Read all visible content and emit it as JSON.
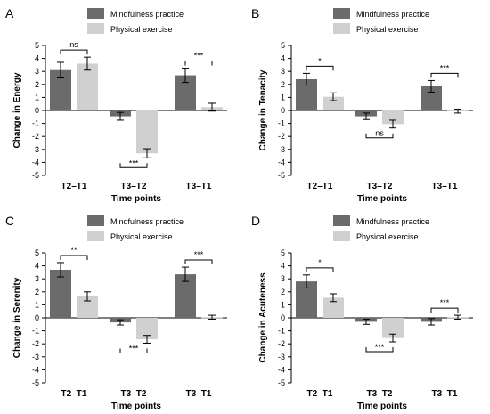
{
  "figure": {
    "colors": {
      "mindfulness": "#6b6b6b",
      "physical": "#d0d0d0",
      "axis": "#000000"
    }
  },
  "chart_data": [
    {
      "type": "bar",
      "panel_label": "A",
      "ylabel": "Change in Energy",
      "xlabel": "Time points",
      "categories": [
        "T2–T1",
        "T3–T2",
        "T3–T1"
      ],
      "ylim": [
        -5,
        5
      ],
      "yticks": [
        -5,
        -4,
        -3,
        -2,
        -1,
        0,
        1,
        2,
        3,
        4,
        5
      ],
      "legend_position": "top",
      "series": [
        {
          "name": "Mindfulness practice",
          "values": [
            3.1,
            -0.45,
            2.7
          ],
          "errors": [
            0.6,
            0.3,
            0.55
          ]
        },
        {
          "name": "Physical exercise",
          "values": [
            3.6,
            -3.3,
            0.25
          ],
          "errors": [
            0.5,
            0.35,
            0.3
          ]
        }
      ],
      "annotations": [
        {
          "category": 0,
          "text": "ns",
          "position": "above"
        },
        {
          "category": 1,
          "text": "***",
          "position": "below"
        },
        {
          "category": 2,
          "text": "***",
          "position": "above"
        }
      ]
    },
    {
      "type": "bar",
      "panel_label": "B",
      "ylabel": "Change in Tenacity",
      "xlabel": "Time points",
      "categories": [
        "T2–T1",
        "T3–T2",
        "T3–T1"
      ],
      "ylim": [
        -5,
        5
      ],
      "yticks": [
        -5,
        -4,
        -3,
        -2,
        -1,
        0,
        1,
        2,
        3,
        4,
        5
      ],
      "legend_position": "top",
      "series": [
        {
          "name": "Mindfulness practice",
          "values": [
            2.4,
            -0.45,
            1.85
          ],
          "errors": [
            0.45,
            0.25,
            0.45
          ]
        },
        {
          "name": "Physical exercise",
          "values": [
            1.05,
            -1.05,
            -0.05
          ],
          "errors": [
            0.3,
            0.3,
            0.15
          ]
        }
      ],
      "annotations": [
        {
          "category": 0,
          "text": "*",
          "position": "above"
        },
        {
          "category": 1,
          "text": "ns",
          "position": "below"
        },
        {
          "category": 2,
          "text": "***",
          "position": "above"
        }
      ]
    },
    {
      "type": "bar",
      "panel_label": "C",
      "ylabel": "Change in Serenity",
      "xlabel": "Time points",
      "categories": [
        "T2–T1",
        "T3–T2",
        "T3–T1"
      ],
      "ylim": [
        -5,
        5
      ],
      "yticks": [
        -5,
        -4,
        -3,
        -2,
        -1,
        0,
        1,
        2,
        3,
        4,
        5
      ],
      "legend_position": "top",
      "series": [
        {
          "name": "Mindfulness practice",
          "values": [
            3.7,
            -0.35,
            3.35
          ],
          "errors": [
            0.55,
            0.2,
            0.55
          ]
        },
        {
          "name": "Physical exercise",
          "values": [
            1.65,
            -1.65,
            0.05
          ],
          "errors": [
            0.35,
            0.3,
            0.15
          ]
        }
      ],
      "annotations": [
        {
          "category": 0,
          "text": "**",
          "position": "above"
        },
        {
          "category": 1,
          "text": "***",
          "position": "below"
        },
        {
          "category": 2,
          "text": "***",
          "position": "above"
        }
      ]
    },
    {
      "type": "bar",
      "panel_label": "D",
      "ylabel": "Change in Acuteness",
      "xlabel": "Time points",
      "categories": [
        "T2–T1",
        "T3–T2",
        "T3–T1"
      ],
      "ylim": [
        -5,
        5
      ],
      "yticks": [
        -5,
        -4,
        -3,
        -2,
        -1,
        0,
        1,
        2,
        3,
        4,
        5
      ],
      "legend_position": "top",
      "series": [
        {
          "name": "Mindfulness practice",
          "values": [
            2.8,
            -0.3,
            -0.3
          ],
          "errors": [
            0.5,
            0.2,
            0.25
          ]
        },
        {
          "name": "Physical exercise",
          "values": [
            1.55,
            -1.55,
            0.05
          ],
          "errors": [
            0.3,
            0.3,
            0.15
          ]
        }
      ],
      "annotations": [
        {
          "category": 0,
          "text": "*",
          "position": "above"
        },
        {
          "category": 1,
          "text": "***",
          "position": "below"
        },
        {
          "category": 2,
          "text": "***",
          "position": "above"
        }
      ]
    }
  ]
}
